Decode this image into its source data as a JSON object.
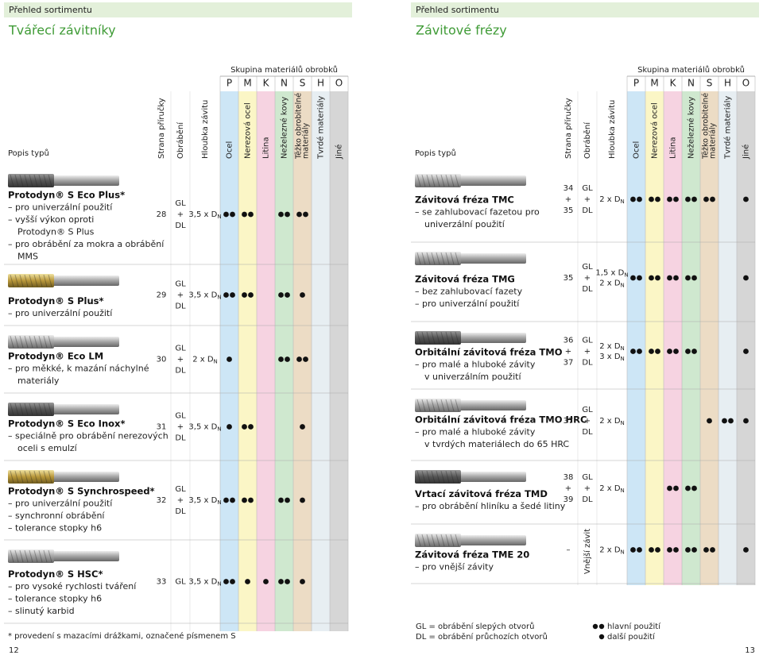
{
  "pages": [
    {
      "header": "Přehled sortimentu",
      "title": "Tvářecí závitníky",
      "group_label": "Skupina materiálů obrobků",
      "groups": [
        "P",
        "M",
        "K",
        "N",
        "S",
        "H",
        "O"
      ],
      "columns": [
        "Popis typů",
        "Strana příručky",
        "Obrábění",
        "Hloubka závitu",
        "Ocel",
        "Nerezová ocel",
        "Litina",
        "Neželezné kovy",
        [
          "Těžko obrobitelné",
          "materiály"
        ],
        "Tvrdé materiály",
        "Jiné"
      ],
      "rows": [
        {
          "name": "Protodyn® S Eco Plus*",
          "lines": [
            "– pro univerzální použití",
            "– vyšší výkon oproti",
            "Protodyn® S Plus",
            "– pro obrábění za mokra a obrábění",
            "MMS"
          ],
          "page": [
            "28"
          ],
          "machining": [
            "GL",
            "+",
            "DL"
          ],
          "depth": [
            {
              "text": "3,5 x D",
              "sub": "N"
            }
          ],
          "materials": [
            2,
            2,
            0,
            2,
            2,
            0,
            0
          ]
        },
        {
          "name": "Protodyn® S Plus*",
          "lines": [
            "– pro univerzální použití"
          ],
          "page": [
            "29"
          ],
          "machining": [
            "GL",
            "+",
            "DL"
          ],
          "depth": [
            {
              "text": "3,5 x D",
              "sub": "N"
            }
          ],
          "materials": [
            2,
            2,
            0,
            2,
            1,
            0,
            0
          ]
        },
        {
          "name": "Protodyn® Eco LM",
          "lines": [
            "– pro měkké, k mazání náchylné",
            "materiály"
          ],
          "page": [
            "30"
          ],
          "machining": [
            "GL",
            "+",
            "DL"
          ],
          "depth": [
            {
              "text": "2 x D",
              "sub": "N"
            }
          ],
          "materials": [
            1,
            0,
            0,
            2,
            2,
            0,
            0
          ]
        },
        {
          "name": "Protodyn® S Eco Inox*",
          "lines": [
            "– speciálně pro obrábění nerezových",
            "oceli s emulzí"
          ],
          "page": [
            "31"
          ],
          "machining": [
            "GL",
            "+",
            "DL"
          ],
          "depth": [
            {
              "text": "3,5 x D",
              "sub": "N"
            }
          ],
          "materials": [
            1,
            2,
            0,
            0,
            1,
            0,
            0
          ]
        },
        {
          "name": "Protodyn® S Synchrospeed*",
          "lines": [
            "– pro univerzální použití",
            "– synchronní obrábění",
            "– tolerance stopky h6"
          ],
          "page": [
            "32"
          ],
          "machining": [
            "GL",
            "+",
            "DL"
          ],
          "depth": [
            {
              "text": "3,5 x D",
              "sub": "N"
            }
          ],
          "materials": [
            2,
            2,
            0,
            2,
            1,
            0,
            0
          ]
        },
        {
          "name": "Protodyn® S HSC*",
          "lines": [
            "– pro vysoké rychlosti tváření",
            "– tolerance stopky h6",
            "– slinutý karbid"
          ],
          "page": [
            "33"
          ],
          "machining": [
            "GL"
          ],
          "depth": [
            {
              "text": "3,5 x D",
              "sub": "N"
            }
          ],
          "materials": [
            2,
            1,
            1,
            2,
            1,
            0,
            0
          ]
        }
      ],
      "footnote": "* provedení s mazacími drážkami, označené písmenem S",
      "page_number": "12"
    },
    {
      "header": "Přehled sortimentu",
      "title": "Závitové frézy",
      "group_label": "Skupina materiálů obrobků",
      "groups": [
        "P",
        "M",
        "K",
        "N",
        "S",
        "H",
        "O"
      ],
      "columns": [
        "Popis typů",
        "Strana příručky",
        "Obrábění",
        "Hloubka závitu",
        "Ocel",
        "Nerezová ocel",
        "Litina",
        "Neželezné kovy",
        [
          "Těžko obrobitelné",
          "materiály"
        ],
        "Tvrdé materiály",
        "Jiné"
      ],
      "rows": [
        {
          "name": "Závitová fréza TMC",
          "lines": [
            "– se zahlubovací fazetou pro",
            "univerzální použití"
          ],
          "page": [
            "34",
            "+",
            "35"
          ],
          "machining": [
            "GL",
            "+",
            "DL"
          ],
          "depth": [
            {
              "text": "2 x D",
              "sub": "N"
            }
          ],
          "materials": [
            2,
            2,
            2,
            2,
            2,
            0,
            1
          ]
        },
        {
          "name": "Závitová fréza TMG",
          "lines": [
            "– bez zahlubovací fazety",
            "– pro univerzální použití"
          ],
          "page": [
            "35"
          ],
          "machining": [
            "GL",
            "+",
            "DL"
          ],
          "depth": [
            {
              "text": "1,5 x D",
              "sub": "N"
            },
            {
              "text": "2 x D",
              "sub": "N"
            }
          ],
          "materials": [
            2,
            2,
            2,
            2,
            0,
            0,
            1
          ]
        },
        {
          "name": "Orbitální závitová fréza TMO",
          "lines": [
            "– pro malé a hluboké závity",
            "v univerzálním použití"
          ],
          "page": [
            "36",
            "+",
            "37"
          ],
          "machining": [
            "GL",
            "+",
            "DL"
          ],
          "depth": [
            {
              "text": "2 x D",
              "sub": "N"
            },
            {
              "text": "3 x D",
              "sub": "N"
            }
          ],
          "materials": [
            2,
            2,
            2,
            2,
            0,
            0,
            1
          ]
        },
        {
          "name": "Orbitální závitová fréza TMO HRC",
          "lines": [
            "– pro malé a hluboké závity",
            "v tvrdých materiálech do 65 HRC"
          ],
          "page": [
            "37"
          ],
          "machining": [
            "GL",
            "+",
            "DL"
          ],
          "depth": [
            {
              "text": "2 x D",
              "sub": "N"
            }
          ],
          "materials": [
            0,
            0,
            0,
            0,
            1,
            2,
            1
          ]
        },
        {
          "name": "Vrtací závitová fréza TMD",
          "lines": [
            "– pro obrábění hliníku a šedé litiny"
          ],
          "page": [
            "38",
            "+",
            "39"
          ],
          "machining": [
            "GL",
            "+",
            "DL"
          ],
          "depth": [
            {
              "text": "2 x D",
              "sub": "N"
            }
          ],
          "materials": [
            0,
            0,
            2,
            2,
            0,
            0,
            0
          ]
        },
        {
          "name": "Závitová fréza TME 20",
          "lines": [
            "– pro vnější závity"
          ],
          "page": [
            "–"
          ],
          "machining_note": "Vnější závit",
          "depth": [
            {
              "text": "2 x D",
              "sub": "N"
            }
          ],
          "materials": [
            2,
            2,
            2,
            2,
            2,
            0,
            1
          ]
        }
      ],
      "legend": {
        "abbreviations": [
          "GL = obrábění slepých otvorů",
          "DL = obrábění průchozích otvorů"
        ],
        "dots": [
          {
            "dots": 2,
            "label": "hlavní použití"
          },
          {
            "dots": 1,
            "label": "další použití"
          }
        ]
      },
      "page_number": "13"
    }
  ]
}
